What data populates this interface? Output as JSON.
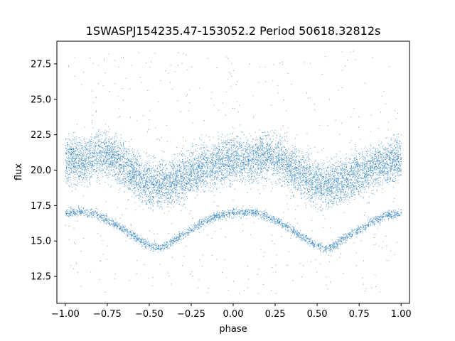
{
  "chart_data": {
    "type": "scatter",
    "title": "1SWASPJ154235.47-153052.2 Period 50618.32812s",
    "xlabel": "phase",
    "ylabel": "flux",
    "xlim": [
      -1.05,
      1.05
    ],
    "ylim": [
      10.6,
      29.1
    ],
    "xticks": [
      -1.0,
      -0.75,
      -0.5,
      -0.25,
      0.0,
      0.25,
      0.5,
      0.75,
      1.0
    ],
    "xtick_labels": [
      "−1.00",
      "−0.75",
      "−0.50",
      "−0.25",
      "0.00",
      "0.25",
      "0.50",
      "0.75",
      "1.00"
    ],
    "yticks": [
      12.5,
      15.0,
      17.5,
      20.0,
      22.5,
      25.0,
      27.5
    ],
    "ytick_labels": [
      "12.5",
      "15.0",
      "17.5",
      "20.0",
      "22.5",
      "25.0",
      "27.5"
    ],
    "grid": false,
    "point_color": "#1f77b4",
    "series": [
      {
        "role": "main band (upper)",
        "x": [
          -1.0,
          -0.9,
          -0.8,
          -0.7,
          -0.6,
          -0.5,
          -0.4,
          -0.3,
          -0.2,
          -0.1,
          0.0,
          0.1,
          0.2,
          0.3,
          0.4,
          0.5,
          0.6,
          0.7,
          0.8,
          0.9,
          1.0
        ],
        "y": [
          20.8,
          20.6,
          21.2,
          20.8,
          19.8,
          19.1,
          19.0,
          19.6,
          20.2,
          20.5,
          20.8,
          20.7,
          21.1,
          20.6,
          19.7,
          19.1,
          19.0,
          19.5,
          20.1,
          20.5,
          20.8
        ],
        "spread": 2.1
      },
      {
        "role": "lower sequence",
        "x": [
          -1.0,
          -0.9,
          -0.8,
          -0.7,
          -0.6,
          -0.5,
          -0.45,
          -0.4,
          -0.3,
          -0.2,
          -0.1,
          0.0,
          0.1,
          0.2,
          0.3,
          0.4,
          0.5,
          0.55,
          0.6,
          0.7,
          0.8,
          0.9,
          1.0
        ],
        "y": [
          17.0,
          17.1,
          16.8,
          16.2,
          15.4,
          14.7,
          14.5,
          14.7,
          15.5,
          16.2,
          16.8,
          17.0,
          17.1,
          16.8,
          16.2,
          15.4,
          14.7,
          14.5,
          14.7,
          15.5,
          16.2,
          16.8,
          17.0
        ],
        "spread": 0.45
      }
    ],
    "outliers_range": [
      11.2,
      28.5
    ]
  }
}
